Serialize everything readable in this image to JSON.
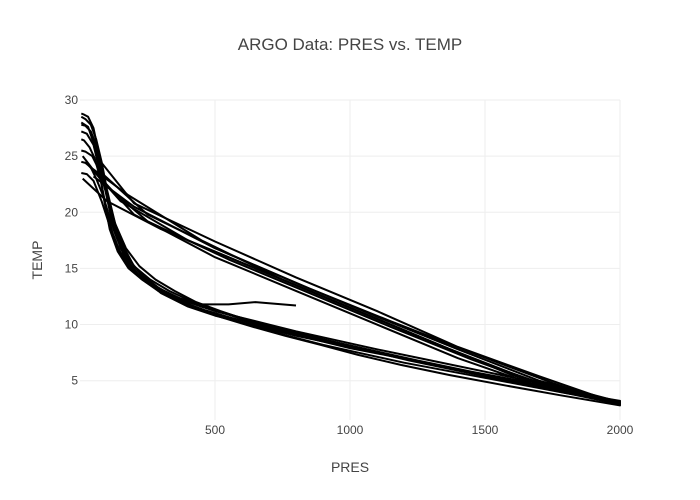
{
  "chart_data": {
    "type": "line",
    "title": "ARGO Data: PRES vs. TEMP",
    "xlabel": "PRES",
    "ylabel": "TEMP",
    "xlim": [
      0,
      2000
    ],
    "ylim": [
      1.5,
      30
    ],
    "xticks": [
      500,
      1000,
      1500,
      2000
    ],
    "yticks": [
      5,
      10,
      15,
      20,
      25,
      30
    ],
    "grid": true,
    "line_color": "#000000",
    "series": [
      {
        "x": [
          5,
          20,
          40,
          60,
          80,
          100,
          130,
          160,
          200,
          250,
          300,
          400,
          500,
          600,
          700,
          800,
          900,
          1000,
          1200,
          1400,
          1600,
          1800,
          2000,
          1800,
          1500,
          1200,
          900,
          600,
          300,
          100,
          10
        ],
        "y": [
          28.5,
          28.3,
          27.8,
          26.5,
          24.5,
          22.0,
          19.0,
          17.0,
          15.2,
          13.8,
          12.8,
          11.6,
          10.8,
          10.2,
          9.6,
          9.0,
          8.5,
          8.0,
          7.0,
          6.0,
          5.0,
          4.0,
          3.2,
          4.0,
          6.5,
          9.5,
          12.5,
          15.5,
          18.5,
          21.0,
          23.0
        ]
      },
      {
        "x": [
          5,
          30,
          60,
          90,
          120,
          150,
          200,
          260,
          330,
          400,
          500,
          600,
          700,
          800,
          950,
          1100,
          1300,
          1500,
          1700,
          1900,
          2000,
          1700,
          1400,
          1100,
          800,
          500,
          200,
          60
        ],
        "y": [
          28.0,
          27.6,
          25.5,
          22.5,
          19.5,
          16.8,
          14.8,
          13.6,
          12.8,
          12.0,
          11.2,
          10.6,
          10.0,
          9.4,
          8.6,
          7.8,
          6.8,
          5.8,
          4.8,
          3.6,
          3.0,
          4.5,
          7.0,
          10.0,
          13.0,
          16.0,
          19.8,
          23.5
        ]
      },
      {
        "x": [
          5,
          25,
          50,
          70,
          90,
          110,
          140,
          180,
          230,
          300,
          380,
          460,
          560,
          660,
          760,
          880,
          1000,
          1150,
          1350,
          1550,
          1750,
          1950,
          2000,
          1750,
          1450,
          1150,
          850,
          550,
          250,
          90,
          10
        ],
        "y": [
          27.2,
          27.0,
          26.0,
          24.0,
          21.0,
          18.5,
          16.5,
          15.0,
          14.0,
          12.9,
          12.0,
          11.3,
          10.6,
          10.0,
          9.3,
          8.6,
          7.9,
          7.2,
          6.2,
          5.3,
          4.4,
          3.4,
          3.1,
          4.3,
          6.9,
          9.8,
          12.8,
          15.8,
          19.2,
          22.5,
          25.0
        ]
      },
      {
        "x": [
          5,
          15,
          35,
          55,
          75,
          95,
          120,
          150,
          190,
          240,
          300,
          370,
          450,
          540,
          640,
          740,
          850,
          970,
          1100,
          1250,
          1450,
          1650,
          1850,
          2000,
          1600,
          1300,
          1000,
          700,
          400,
          150,
          20
        ],
        "y": [
          26.5,
          26.4,
          25.8,
          24.8,
          23.0,
          20.6,
          18.2,
          16.4,
          15.0,
          14.0,
          13.1,
          12.3,
          11.6,
          11.0,
          10.3,
          9.7,
          9.0,
          8.3,
          7.6,
          6.8,
          5.8,
          4.9,
          3.8,
          3.0,
          5.5,
          8.5,
          11.5,
          14.5,
          17.5,
          21.0,
          24.5
        ]
      },
      {
        "x": [
          5,
          20,
          45,
          70,
          100,
          130,
          170,
          220,
          280,
          350,
          430,
          520,
          620,
          720,
          830,
          950,
          1080,
          1220,
          1380,
          1560,
          1760,
          2000,
          1650,
          1350,
          1050,
          750,
          450,
          180,
          40
        ],
        "y": [
          25.5,
          25.4,
          25.0,
          23.8,
          21.5,
          19.0,
          16.8,
          15.2,
          14.0,
          13.0,
          12.0,
          11.2,
          10.4,
          9.7,
          9.0,
          8.3,
          7.6,
          6.8,
          6.0,
          5.1,
          4.1,
          2.9,
          5.2,
          8.0,
          11.0,
          14.0,
          17.5,
          21.5,
          24.0
        ]
      },
      {
        "x": [
          5,
          20,
          40,
          60,
          85,
          110,
          140,
          180,
          230,
          290,
          360,
          440,
          540,
          650,
          770,
          900,
          1050,
          1200,
          1400,
          1600,
          1800,
          2000,
          1700,
          1400,
          1100,
          800,
          500,
          200,
          50
        ],
        "y": [
          24.5,
          24.4,
          24.0,
          23.0,
          21.5,
          19.5,
          17.5,
          15.8,
          14.4,
          13.3,
          12.3,
          11.4,
          10.6,
          9.8,
          9.0,
          8.2,
          7.4,
          6.6,
          5.7,
          4.8,
          3.9,
          3.1,
          5.0,
          7.8,
          10.7,
          13.7,
          16.8,
          20.5,
          23.2
        ]
      },
      {
        "x": [
          5,
          25,
          50,
          80,
          110,
          140,
          180,
          230,
          290,
          360,
          450,
          550,
          650,
          800
        ],
        "y": [
          23.5,
          23.4,
          22.8,
          21.0,
          18.8,
          16.8,
          15.2,
          14.0,
          13.0,
          12.4,
          11.8,
          11.8,
          12.0,
          11.7
        ]
      },
      {
        "x": [
          5,
          20,
          40,
          60,
          80,
          110,
          150,
          200,
          260,
          330,
          420,
          520,
          640,
          780,
          940,
          1100,
          1300,
          1500,
          1700,
          1900,
          2000,
          1700,
          1400,
          1100,
          800,
          500,
          200,
          60
        ],
        "y": [
          27.8,
          27.7,
          27.2,
          26.0,
          24.0,
          20.5,
          17.2,
          15.2,
          14.0,
          13.0,
          12.0,
          11.1,
          10.2,
          9.3,
          8.4,
          7.5,
          6.5,
          5.5,
          4.5,
          3.5,
          2.9,
          5.4,
          8.0,
          11.2,
          14.2,
          17.4,
          20.8,
          25.0
        ]
      },
      {
        "x": [
          5,
          15,
          30,
          50,
          70,
          95,
          125,
          165,
          215,
          275,
          345,
          430,
          530,
          640,
          760,
          890,
          1030,
          1190,
          1370,
          1570,
          1780,
          2000,
          1750,
          1450,
          1150,
          850,
          550,
          250,
          80
        ],
        "y": [
          28.8,
          28.7,
          28.5,
          27.5,
          25.2,
          21.8,
          18.4,
          16.0,
          14.5,
          13.3,
          12.3,
          11.4,
          10.6,
          9.8,
          9.0,
          8.2,
          7.3,
          6.4,
          5.5,
          4.6,
          3.7,
          2.8,
          4.8,
          7.5,
          10.3,
          13.2,
          16.3,
          19.8,
          23.5
        ]
      }
    ]
  }
}
